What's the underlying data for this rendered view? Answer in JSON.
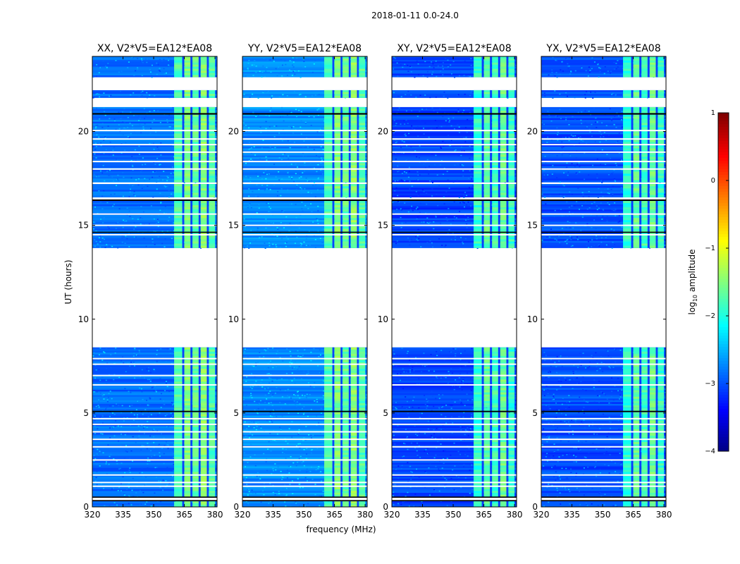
{
  "chart_data": {
    "type": "heatmap",
    "suptitle": "2018-01-11 0.0-24.0",
    "xlabel": "frequency (MHz)",
    "ylabel": "UT (hours)",
    "xlim": [
      320,
      381
    ],
    "ylim": [
      0,
      24
    ],
    "xticks": [
      320,
      335,
      350,
      365,
      380
    ],
    "yticks": [
      0,
      5,
      10,
      15,
      20
    ],
    "panels": [
      {
        "title": "XX, V2*V5=EA12*EA08",
        "polarization": "XX"
      },
      {
        "title": "YY, V2*V5=EA12*EA08",
        "polarization": "YY"
      },
      {
        "title": "XY, V2*V5=EA12*EA08",
        "polarization": "XY"
      },
      {
        "title": "YX, V2*V5=EA12*EA08",
        "polarization": "YX"
      }
    ],
    "colorbar": {
      "label_prefix": "log",
      "label_sub": "10",
      "label_suffix": " amplitude",
      "range": [
        -4,
        1
      ],
      "ticks": [
        1,
        0,
        -1,
        -2,
        -3,
        -4
      ],
      "tick_labels": [
        "1",
        "0",
        "−1",
        "−2",
        "−3",
        "−4"
      ],
      "colormap": "jet"
    },
    "data_segments_ut": [
      [
        0.0,
        0.3
      ],
      [
        0.3,
        0.55
      ],
      [
        0.55,
        0.95
      ],
      [
        0.95,
        5.05
      ],
      [
        5.05,
        5.3
      ],
      [
        5.3,
        8.5
      ],
      [
        13.8,
        16.3
      ],
      [
        16.5,
        17.2
      ],
      [
        17.3,
        20.9
      ],
      [
        20.9,
        21.3
      ],
      [
        21.8,
        22.2
      ],
      [
        22.9,
        24.0
      ]
    ],
    "flagged_gaps_ut": [
      [
        8.5,
        13.8
      ],
      [
        21.3,
        21.8
      ],
      [
        22.2,
        22.9
      ]
    ],
    "bright_band_mhz": [
      360,
      380
    ],
    "colors": {
      "flag_black": "#000000",
      "empty": "#ffffff",
      "axes": "#000000"
    }
  }
}
